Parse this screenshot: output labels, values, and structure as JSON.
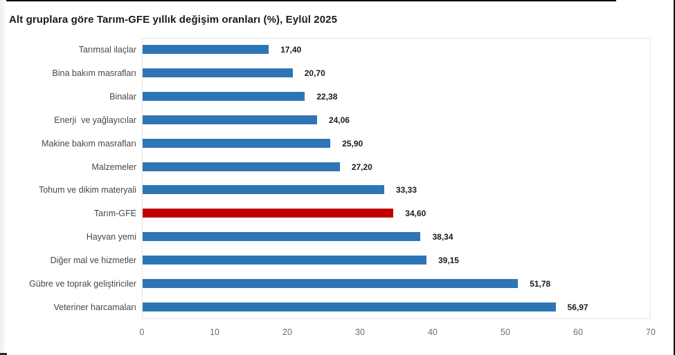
{
  "chart": {
    "title": "Alt gruplara göre Tarım-GFE yıllık değişim oranları (%), Eylül 2025",
    "colors": {
      "bar": "#2E75B6",
      "highlight_bar": "#C00000",
      "category_text": "#474747",
      "value_text": "#1a1a1a",
      "tick_text": "#6e6e6e",
      "plot_border": "#e4e4e4"
    }
  },
  "chart_data": {
    "type": "bar",
    "orientation": "horizontal",
    "title": "Alt gruplara göre Tarım-GFE yıllık değişim oranları (%), Eylül 2025",
    "xlabel": "",
    "ylabel": "",
    "xlim": [
      0,
      70
    ],
    "xticks": [
      0,
      10,
      20,
      30,
      40,
      50,
      60,
      70
    ],
    "grid": false,
    "legend": false,
    "categories": [
      "Tarımsal ilaçlar",
      "Bina bakım masrafları",
      "Binalar",
      "Enerji  ve yağlayıcılar",
      "Makine bakım masrafları",
      "Malzemeler",
      "Tohum ve dikim materyali",
      "Tarım-GFE",
      "Hayvan yemi",
      "Diğer mal ve hizmetler",
      "Gübre ve toprak geliştiriciler",
      "Veteriner harcamaları"
    ],
    "values": [
      17.4,
      20.7,
      22.38,
      24.06,
      25.9,
      27.2,
      33.33,
      34.6,
      38.34,
      39.15,
      51.78,
      56.97
    ],
    "value_labels": [
      "17,40",
      "20,70",
      "22,38",
      "24,06",
      "25,90",
      "27,20",
      "33,33",
      "34,60",
      "38,34",
      "39,15",
      "51,78",
      "56,97"
    ],
    "highlight_category": "Tarım-GFE"
  }
}
